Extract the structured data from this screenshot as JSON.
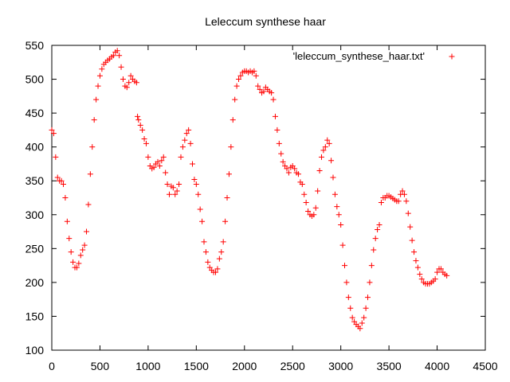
{
  "chart_data": {
    "type": "scatter",
    "title": "Leleccum synthese haar",
    "xlabel": "",
    "ylabel": "",
    "xlim": [
      0,
      4500
    ],
    "ylim": [
      100,
      550
    ],
    "x_ticks": [
      "0",
      "500",
      "1000",
      "1500",
      "2000",
      "2500",
      "3000",
      "3500",
      "4000",
      "4500"
    ],
    "y_ticks": [
      "100",
      "150",
      "200",
      "250",
      "300",
      "350",
      "400",
      "450",
      "500",
      "550"
    ],
    "marker": "+",
    "color": "#ff0000",
    "legend": {
      "position": "top-right",
      "label": "'leleccum_synthese_haar.txt'"
    },
    "series": [
      {
        "name": "'leleccum_synthese_haar.txt'",
        "points": [
          [
            0,
            425
          ],
          [
            20,
            420
          ],
          [
            40,
            385
          ],
          [
            60,
            355
          ],
          [
            80,
            350
          ],
          [
            100,
            350
          ],
          [
            120,
            345
          ],
          [
            140,
            325
          ],
          [
            160,
            290
          ],
          [
            180,
            265
          ],
          [
            200,
            245
          ],
          [
            220,
            230
          ],
          [
            240,
            222
          ],
          [
            260,
            222
          ],
          [
            280,
            228
          ],
          [
            300,
            240
          ],
          [
            320,
            248
          ],
          [
            340,
            255
          ],
          [
            360,
            275
          ],
          [
            380,
            315
          ],
          [
            400,
            360
          ],
          [
            420,
            400
          ],
          [
            440,
            440
          ],
          [
            460,
            470
          ],
          [
            480,
            490
          ],
          [
            500,
            505
          ],
          [
            520,
            515
          ],
          [
            540,
            522
          ],
          [
            560,
            525
          ],
          [
            580,
            528
          ],
          [
            600,
            530
          ],
          [
            620,
            533
          ],
          [
            640,
            535
          ],
          [
            660,
            540
          ],
          [
            680,
            542
          ],
          [
            700,
            535
          ],
          [
            720,
            518
          ],
          [
            740,
            500
          ],
          [
            760,
            490
          ],
          [
            780,
            488
          ],
          [
            800,
            495
          ],
          [
            820,
            505
          ],
          [
            840,
            500
          ],
          [
            860,
            497
          ],
          [
            880,
            495
          ],
          [
            890,
            445
          ],
          [
            900,
            440
          ],
          [
            920,
            432
          ],
          [
            940,
            425
          ],
          [
            960,
            412
          ],
          [
            980,
            405
          ],
          [
            1000,
            385
          ],
          [
            1020,
            372
          ],
          [
            1040,
            368
          ],
          [
            1060,
            370
          ],
          [
            1080,
            375
          ],
          [
            1100,
            378
          ],
          [
            1120,
            372
          ],
          [
            1140,
            380
          ],
          [
            1160,
            385
          ],
          [
            1180,
            362
          ],
          [
            1200,
            345
          ],
          [
            1220,
            330
          ],
          [
            1240,
            342
          ],
          [
            1260,
            340
          ],
          [
            1280,
            330
          ],
          [
            1300,
            335
          ],
          [
            1320,
            345
          ],
          [
            1340,
            385
          ],
          [
            1360,
            400
          ],
          [
            1380,
            410
          ],
          [
            1400,
            420
          ],
          [
            1420,
            425
          ],
          [
            1440,
            405
          ],
          [
            1460,
            375
          ],
          [
            1480,
            352
          ],
          [
            1500,
            345
          ],
          [
            1520,
            330
          ],
          [
            1540,
            308
          ],
          [
            1560,
            290
          ],
          [
            1580,
            260
          ],
          [
            1600,
            245
          ],
          [
            1620,
            230
          ],
          [
            1640,
            222
          ],
          [
            1660,
            218
          ],
          [
            1680,
            215
          ],
          [
            1700,
            215
          ],
          [
            1720,
            220
          ],
          [
            1740,
            235
          ],
          [
            1760,
            245
          ],
          [
            1780,
            260
          ],
          [
            1800,
            290
          ],
          [
            1820,
            325
          ],
          [
            1840,
            360
          ],
          [
            1860,
            400
          ],
          [
            1880,
            440
          ],
          [
            1900,
            470
          ],
          [
            1920,
            490
          ],
          [
            1940,
            500
          ],
          [
            1960,
            505
          ],
          [
            1980,
            510
          ],
          [
            2000,
            512
          ],
          [
            2020,
            512
          ],
          [
            2040,
            510
          ],
          [
            2060,
            512
          ],
          [
            2080,
            510
          ],
          [
            2100,
            512
          ],
          [
            2120,
            505
          ],
          [
            2140,
            490
          ],
          [
            2160,
            485
          ],
          [
            2180,
            480
          ],
          [
            2200,
            482
          ],
          [
            2220,
            488
          ],
          [
            2240,
            485
          ],
          [
            2260,
            482
          ],
          [
            2280,
            480
          ],
          [
            2300,
            470
          ],
          [
            2320,
            445
          ],
          [
            2340,
            425
          ],
          [
            2360,
            405
          ],
          [
            2380,
            390
          ],
          [
            2400,
            378
          ],
          [
            2420,
            372
          ],
          [
            2440,
            368
          ],
          [
            2460,
            362
          ],
          [
            2480,
            370
          ],
          [
            2500,
            372
          ],
          [
            2520,
            368
          ],
          [
            2540,
            362
          ],
          [
            2560,
            360
          ],
          [
            2580,
            348
          ],
          [
            2600,
            345
          ],
          [
            2620,
            330
          ],
          [
            2640,
            318
          ],
          [
            2660,
            305
          ],
          [
            2680,
            300
          ],
          [
            2700,
            298
          ],
          [
            2720,
            300
          ],
          [
            2740,
            310
          ],
          [
            2760,
            335
          ],
          [
            2780,
            365
          ],
          [
            2800,
            385
          ],
          [
            2820,
            395
          ],
          [
            2840,
            400
          ],
          [
            2860,
            410
          ],
          [
            2880,
            405
          ],
          [
            2900,
            380
          ],
          [
            2920,
            355
          ],
          [
            2940,
            330
          ],
          [
            2960,
            312
          ],
          [
            2980,
            300
          ],
          [
            3000,
            285
          ],
          [
            3020,
            255
          ],
          [
            3040,
            225
          ],
          [
            3060,
            200
          ],
          [
            3080,
            178
          ],
          [
            3100,
            162
          ],
          [
            3120,
            148
          ],
          [
            3140,
            142
          ],
          [
            3160,
            138
          ],
          [
            3180,
            135
          ],
          [
            3200,
            132
          ],
          [
            3220,
            140
          ],
          [
            3240,
            148
          ],
          [
            3260,
            162
          ],
          [
            3280,
            178
          ],
          [
            3300,
            200
          ],
          [
            3320,
            225
          ],
          [
            3340,
            248
          ],
          [
            3360,
            265
          ],
          [
            3380,
            278
          ],
          [
            3400,
            285
          ],
          [
            3420,
            318
          ],
          [
            3440,
            325
          ],
          [
            3460,
            325
          ],
          [
            3480,
            328
          ],
          [
            3500,
            328
          ],
          [
            3520,
            326
          ],
          [
            3540,
            324
          ],
          [
            3560,
            322
          ],
          [
            3580,
            320
          ],
          [
            3600,
            320
          ],
          [
            3620,
            330
          ],
          [
            3640,
            335
          ],
          [
            3660,
            330
          ],
          [
            3680,
            320
          ],
          [
            3700,
            302
          ],
          [
            3720,
            282
          ],
          [
            3740,
            262
          ],
          [
            3760,
            245
          ],
          [
            3780,
            232
          ],
          [
            3800,
            222
          ],
          [
            3820,
            212
          ],
          [
            3840,
            205
          ],
          [
            3860,
            200
          ],
          [
            3880,
            198
          ],
          [
            3900,
            198
          ],
          [
            3920,
            198
          ],
          [
            3940,
            200
          ],
          [
            3960,
            202
          ],
          [
            3980,
            205
          ],
          [
            4000,
            215
          ],
          [
            4020,
            220
          ],
          [
            4040,
            220
          ],
          [
            4060,
            215
          ],
          [
            4080,
            212
          ],
          [
            4100,
            210
          ]
        ]
      }
    ]
  }
}
